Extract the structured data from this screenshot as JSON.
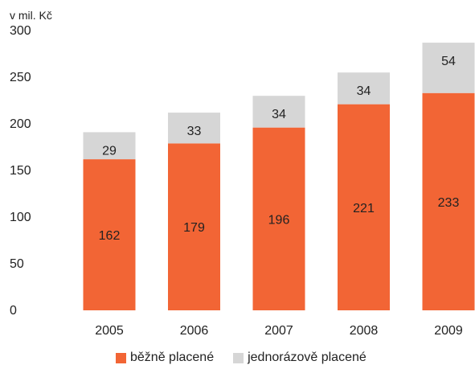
{
  "chart_data": {
    "type": "bar",
    "stacked": true,
    "ylabel": "v mil. Kč",
    "ylim": [
      0,
      300
    ],
    "yticks": [
      0,
      50,
      100,
      150,
      200,
      250,
      300
    ],
    "categories": [
      "2005",
      "2006",
      "2007",
      "2008",
      "2009"
    ],
    "series": [
      {
        "name": "běžně placené",
        "color": "#f26535",
        "values": [
          162,
          179,
          196,
          221,
          233
        ]
      },
      {
        "name": "jednorázově placené",
        "color": "#d6d6d6",
        "values": [
          29,
          33,
          34,
          34,
          54
        ]
      }
    ],
    "legend_position": "bottom",
    "grid": false
  }
}
